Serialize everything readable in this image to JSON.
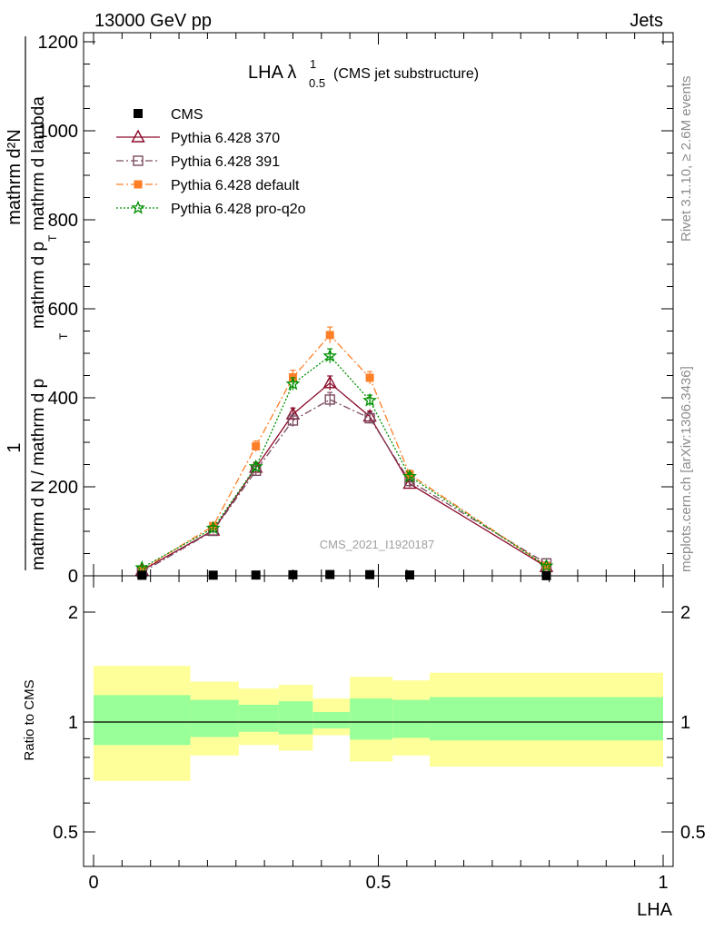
{
  "header": {
    "left": "13000 GeV pp",
    "right": "Jets",
    "side_top": "Rivet 3.1.10, ≥ 2.6M events",
    "side_bottom": "mcplots.cern.ch [arXiv:1306.3436]"
  },
  "chart_data": [
    {
      "type": "line",
      "panel": "main",
      "title_main": "LHA λ",
      "title_sup": "1",
      "title_sub": "0.5",
      "title_suffix": "(CMS jet substructure)",
      "watermark": "CMS_2021_I1920187",
      "ylabel_numerator": "mathrm d²N",
      "ylabel_line1": "1",
      "ylabel_line2": "mathrm d N / mathrm d p",
      "ylabel_sub": "T",
      "ylabel_line3": "mathrm d p",
      "ylabel_sub2": "T",
      "ylabel_line4": "mathrm d lambda",
      "xlim": [
        -0.03,
        1.02
      ],
      "ylim": [
        0,
        1220
      ],
      "yticks": [
        0,
        200,
        400,
        600,
        800,
        1000,
        1200
      ],
      "ytick_labels": [
        "0",
        "200",
        "400",
        "600",
        "800",
        "1000",
        "1200"
      ],
      "legend_position": "top-left",
      "data_series": {
        "name": "CMS",
        "x": [
          0.085,
          0.21,
          0.285,
          0.35,
          0.415,
          0.485,
          0.555,
          0.795
        ],
        "y": [
          1.2,
          1.4,
          1.7,
          2.3,
          2.8,
          2.6,
          1.9,
          0.3
        ]
      },
      "series": [
        {
          "name": "Pythia 6.428 370",
          "color": "#8b0a2a",
          "marker": "triangle-open",
          "dash": "solid",
          "x": [
            0.085,
            0.21,
            0.285,
            0.35,
            0.415,
            0.485,
            0.555,
            0.795
          ],
          "y": [
            12,
            102,
            243,
            363,
            433,
            358,
            207,
            20
          ],
          "err": [
            3,
            6,
            10,
            14,
            16,
            12,
            8,
            3
          ]
        },
        {
          "name": "Pythia 6.428 391",
          "color": "#7a4a60",
          "marker": "square-open",
          "dash": "dashdot",
          "x": [
            0.085,
            0.21,
            0.285,
            0.35,
            0.415,
            0.485,
            0.555,
            0.795
          ],
          "y": [
            8,
            101,
            236,
            349,
            396,
            354,
            213,
            28
          ],
          "err": [
            3,
            6,
            10,
            14,
            16,
            12,
            8,
            3
          ]
        },
        {
          "name": "Pythia 6.428 default",
          "color": "#ff7f27",
          "marker": "square-filled",
          "dash": "dashdot",
          "x": [
            0.085,
            0.21,
            0.285,
            0.35,
            0.415,
            0.485,
            0.555,
            0.795
          ],
          "y": [
            14,
            112,
            291,
            446,
            541,
            445,
            228,
            22
          ],
          "err": [
            3,
            7,
            12,
            16,
            18,
            14,
            9,
            3
          ]
        },
        {
          "name": "Pythia 6.428 pro-q2o",
          "color": "#009000",
          "marker": "star-open",
          "dash": "dotted",
          "x": [
            0.085,
            0.21,
            0.285,
            0.35,
            0.415,
            0.485,
            0.555,
            0.795
          ],
          "y": [
            18,
            107,
            245,
            431,
            494,
            394,
            223,
            22
          ],
          "err": [
            3,
            6,
            10,
            14,
            16,
            12,
            8,
            3
          ]
        }
      ]
    },
    {
      "type": "area",
      "panel": "ratio",
      "ylabel": "Ratio to CMS",
      "xlabel": "LHA",
      "xlim": [
        -0.03,
        1.02
      ],
      "ylim": [
        0.35,
        2.3
      ],
      "yticks": [
        0.5,
        1,
        2
      ],
      "ytick_labels": [
        "0.5",
        "1",
        "2"
      ],
      "xticks": [
        0,
        0.5,
        1
      ],
      "xtick_labels": [
        "0",
        "0.5",
        "1"
      ],
      "reference_line": 1.0,
      "bins": [
        {
          "lo": 0.0,
          "hi": 0.17,
          "inner": [
            0.865,
            1.185
          ],
          "outer": [
            0.69,
            1.425
          ]
        },
        {
          "lo": 0.17,
          "hi": 0.255,
          "inner": [
            0.91,
            1.15
          ],
          "outer": [
            0.81,
            1.29
          ]
        },
        {
          "lo": 0.255,
          "hi": 0.325,
          "inner": [
            0.94,
            1.115
          ],
          "outer": [
            0.865,
            1.235
          ]
        },
        {
          "lo": 0.325,
          "hi": 0.385,
          "inner": [
            0.925,
            1.14
          ],
          "outer": [
            0.835,
            1.265
          ]
        },
        {
          "lo": 0.385,
          "hi": 0.45,
          "inner": [
            0.96,
            1.065
          ],
          "outer": [
            0.92,
            1.16
          ]
        },
        {
          "lo": 0.45,
          "hi": 0.525,
          "inner": [
            0.895,
            1.16
          ],
          "outer": [
            0.78,
            1.33
          ]
        },
        {
          "lo": 0.525,
          "hi": 0.59,
          "inner": [
            0.905,
            1.15
          ],
          "outer": [
            0.81,
            1.3
          ]
        },
        {
          "lo": 0.59,
          "hi": 1.0,
          "inner": [
            0.89,
            1.17
          ],
          "outer": [
            0.755,
            1.365
          ]
        }
      ],
      "inner_color": "#99ff99",
      "outer_color": "#ffff99"
    }
  ]
}
